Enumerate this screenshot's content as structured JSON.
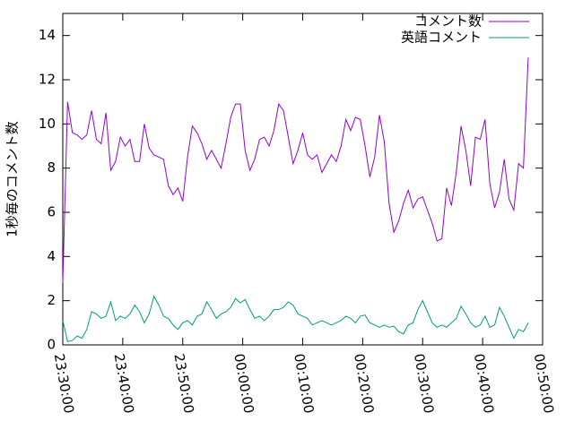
{
  "chart_data": {
    "type": "line",
    "ylabel": "1秒毎のコメント数",
    "x": [
      "23:30:00",
      "23:30:48",
      "23:31:36",
      "23:32:24",
      "23:33:12",
      "23:34:00",
      "23:34:48",
      "23:35:36",
      "23:36:24",
      "23:37:12",
      "23:38:00",
      "23:38:48",
      "23:39:36",
      "23:40:24",
      "23:41:12",
      "23:42:00",
      "23:42:48",
      "23:43:36",
      "23:44:24",
      "23:45:12",
      "23:46:00",
      "23:46:48",
      "23:47:36",
      "23:48:24",
      "23:49:12",
      "23:50:00",
      "23:50:48",
      "23:51:36",
      "23:52:24",
      "23:53:12",
      "23:54:00",
      "23:54:48",
      "23:55:36",
      "23:56:24",
      "23:57:12",
      "23:58:00",
      "23:58:48",
      "23:59:36",
      "00:00:24",
      "00:01:12",
      "00:02:00",
      "00:02:48",
      "00:03:36",
      "00:04:24",
      "00:05:12",
      "00:06:00",
      "00:06:48",
      "00:07:36",
      "00:08:24",
      "00:09:12",
      "00:10:00",
      "00:10:48",
      "00:11:36",
      "00:12:24",
      "00:13:12",
      "00:14:00",
      "00:14:48",
      "00:15:36",
      "00:16:24",
      "00:17:12",
      "00:18:00",
      "00:18:48",
      "00:19:36",
      "00:20:24",
      "00:21:12",
      "00:22:00",
      "00:22:48",
      "00:23:36",
      "00:24:24",
      "00:25:12",
      "00:26:00",
      "00:26:48",
      "00:27:36",
      "00:28:24",
      "00:29:12",
      "00:30:00",
      "00:30:48",
      "00:31:36",
      "00:32:24",
      "00:33:12",
      "00:34:00",
      "00:34:48",
      "00:35:36",
      "00:36:24",
      "00:37:12",
      "00:38:00",
      "00:38:48",
      "00:39:36",
      "00:40:24",
      "00:41:12",
      "00:42:00",
      "00:42:48",
      "00:43:36",
      "00:44:24",
      "00:45:12",
      "00:46:00",
      "00:46:48",
      "00:47:36"
    ],
    "series": [
      {
        "name": "コメント数",
        "color": "#9400d3",
        "values": [
          2.8,
          11.0,
          9.6,
          9.5,
          9.3,
          9.5,
          10.6,
          9.3,
          9.1,
          10.5,
          7.9,
          8.3,
          9.4,
          9.0,
          9.3,
          8.3,
          8.3,
          10.0,
          8.9,
          8.6,
          8.5,
          8.4,
          7.2,
          6.8,
          7.1,
          6.5,
          8.5,
          9.9,
          9.6,
          9.1,
          8.4,
          8.8,
          8.4,
          8.0,
          9.1,
          10.3,
          10.9,
          10.9,
          8.8,
          7.9,
          8.4,
          9.3,
          9.4,
          9.0,
          9.7,
          10.9,
          10.6,
          9.4,
          8.2,
          8.8,
          9.6,
          8.6,
          8.4,
          8.6,
          7.8,
          8.2,
          8.6,
          8.3,
          9.0,
          10.2,
          9.7,
          10.3,
          10.2,
          9.0,
          7.6,
          8.5,
          10.4,
          9.2,
          6.4,
          5.1,
          5.6,
          6.4,
          7.0,
          6.2,
          6.6,
          6.7,
          6.1,
          5.5,
          4.7,
          4.8,
          7.1,
          6.3,
          7.8,
          9.9,
          8.8,
          7.2,
          9.4,
          9.3,
          10.2,
          7.3,
          6.2,
          6.9,
          8.4,
          6.6,
          6.1,
          8.2,
          8.0,
          13.0
        ]
      },
      {
        "name": "英語コメント",
        "color": "#009e73",
        "values": [
          1.1,
          0.15,
          0.2,
          0.4,
          0.3,
          0.7,
          1.5,
          1.4,
          1.2,
          1.3,
          1.95,
          1.1,
          1.3,
          1.2,
          1.4,
          1.8,
          1.5,
          1.0,
          1.4,
          2.2,
          1.8,
          1.3,
          1.2,
          0.9,
          0.7,
          1.0,
          1.1,
          0.9,
          1.3,
          1.4,
          1.95,
          1.6,
          1.2,
          1.4,
          1.5,
          1.7,
          2.1,
          1.9,
          2.05,
          1.6,
          1.2,
          1.3,
          1.1,
          1.3,
          1.6,
          1.6,
          1.7,
          1.95,
          1.8,
          1.4,
          1.3,
          1.2,
          0.9,
          1.0,
          1.1,
          1.0,
          0.9,
          1.0,
          1.1,
          1.3,
          1.2,
          1.0,
          1.3,
          1.35,
          1.0,
          0.9,
          0.8,
          0.9,
          0.8,
          0.85,
          0.6,
          0.5,
          0.9,
          1.0,
          1.6,
          2.0,
          1.5,
          1.0,
          0.8,
          0.9,
          0.8,
          1.0,
          1.2,
          1.75,
          1.4,
          1.0,
          0.8,
          0.9,
          1.3,
          0.8,
          0.9,
          1.7,
          1.3,
          0.8,
          0.3,
          0.7,
          0.6,
          1.0
        ]
      }
    ],
    "xlim": [
      "23:30:00",
      "00:50:00"
    ],
    "xticks": [
      "23:30:00",
      "23:40:00",
      "23:50:00",
      "00:00:00",
      "00:10:00",
      "00:20:00",
      "00:30:00",
      "00:40:00",
      "00:50:00"
    ],
    "ylim": [
      0,
      15
    ],
    "yticks": [
      0,
      2,
      4,
      6,
      8,
      10,
      12,
      14
    ],
    "grid": false,
    "legend": "top-right"
  }
}
